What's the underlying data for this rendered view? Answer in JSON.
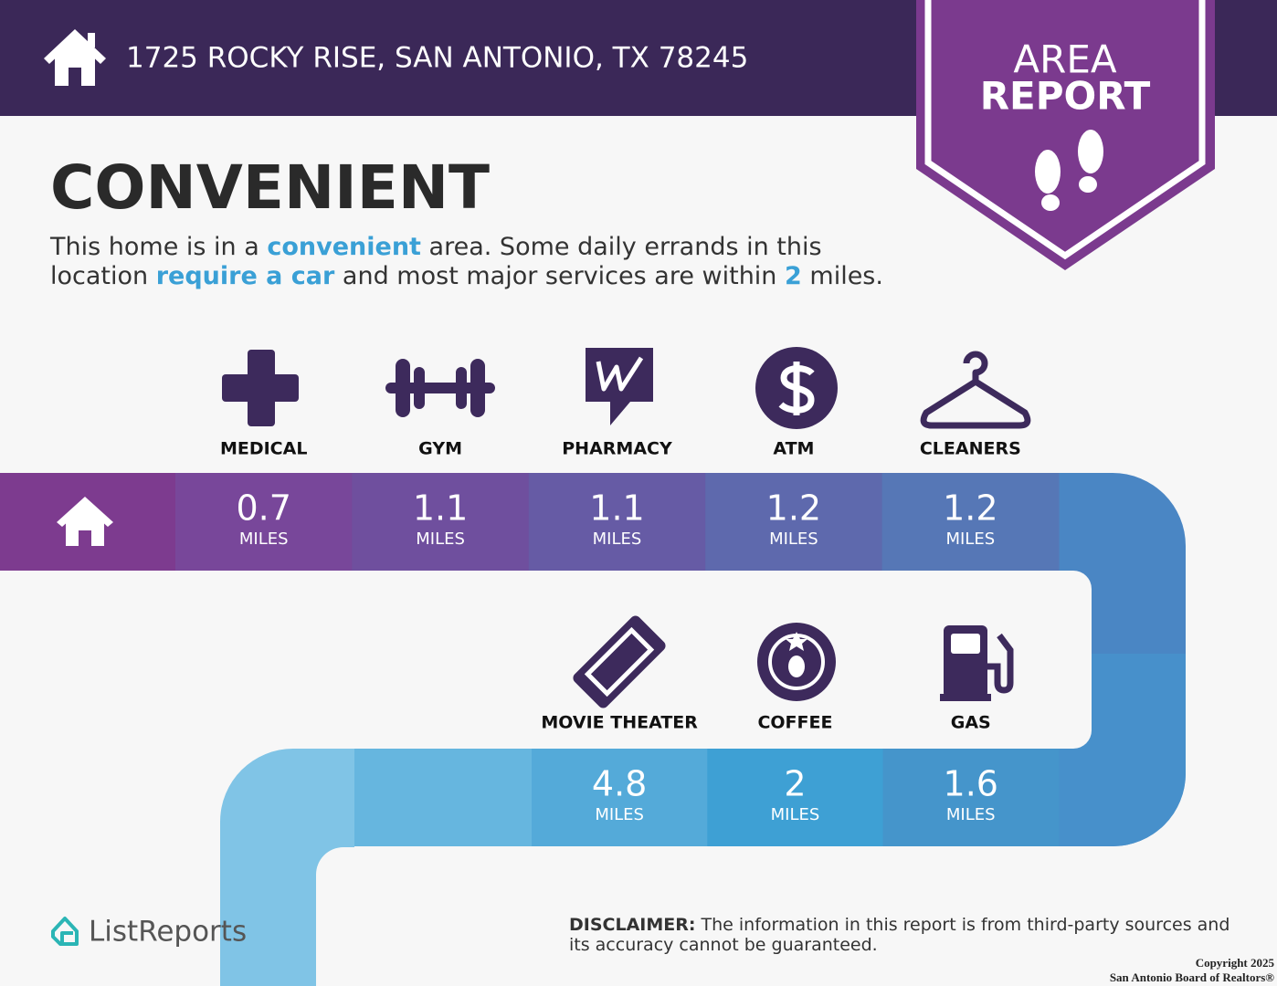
{
  "header": {
    "address": "1725 ROCKY RISE, SAN ANTONIO, TX 78245"
  },
  "badge": {
    "lines": [
      "AREA",
      "REPORT"
    ]
  },
  "heading": "CONVENIENT",
  "description": {
    "lines": [
      [
        {
          "text": "This home is in a ",
          "highlight": false
        },
        {
          "text": "convenient",
          "highlight": true
        },
        {
          "text": " area. Some daily errands in this",
          "highlight": false
        }
      ],
      [
        {
          "text": "location ",
          "highlight": false
        },
        {
          "text": "require a car",
          "highlight": true
        },
        {
          "text": " and most major services are within ",
          "highlight": false
        },
        {
          "text": "2",
          "highlight": true
        },
        {
          "text": " miles.",
          "highlight": false
        }
      ]
    ]
  },
  "amenity_rows": [
    [
      {
        "label": "MEDICAL",
        "distance": 0.7,
        "unit": "MILES"
      },
      {
        "label": "GYM",
        "distance": 1.1,
        "unit": "MILES"
      },
      {
        "label": "PHARMACY",
        "distance": 1.1,
        "unit": "MILES"
      },
      {
        "label": "ATM",
        "distance": 1.2,
        "unit": "MILES"
      },
      {
        "label": "CLEANERS",
        "distance": 1.2,
        "unit": "MILES"
      }
    ],
    [
      {
        "label": "MOVIE THEATER",
        "distance": 4.8,
        "unit": "MILES"
      },
      {
        "label": "COFFEE",
        "distance": 2,
        "unit": "MILES"
      },
      {
        "label": "GAS",
        "distance": 1.6,
        "unit": "MILES"
      }
    ]
  ],
  "footer": {
    "brand": "ListReports",
    "disclaimer": {
      "label": "DISCLAIMER:",
      "text": "The information in this report is from third-party sources and its accuracy cannot be guaranteed."
    },
    "copyright": [
      "Copyright 2025",
      "San Antonio Board of Realtors®"
    ]
  }
}
